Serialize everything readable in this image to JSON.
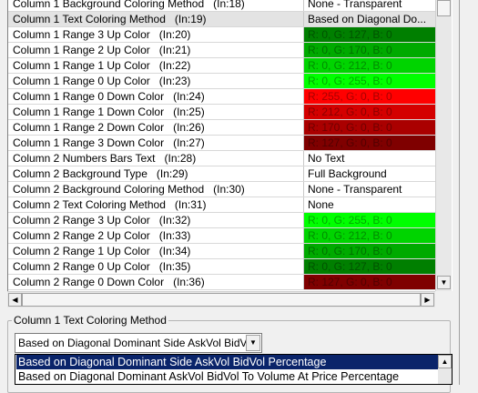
{
  "grid": {
    "rows": [
      {
        "name": "Column 1 Background Coloring Method",
        "input": "(In:18)",
        "value": "None - Transparent",
        "color": ""
      },
      {
        "name": "Column 1 Text Coloring Method",
        "input": "(In:19)",
        "value": "Based on Diagonal Do...",
        "color": "",
        "selected": true
      },
      {
        "name": "Column 1 Range 3 Up Color",
        "input": "(In:20)",
        "value": "R: 0, G: 127, B: 0",
        "color": "#007f00"
      },
      {
        "name": "Column 1 Range 2 Up Color",
        "input": "(In:21)",
        "value": "R: 0, G: 170, B: 0",
        "color": "#00aa00"
      },
      {
        "name": "Column 1 Range 1 Up Color",
        "input": "(In:22)",
        "value": "R: 0, G: 212, B: 0",
        "color": "#00d400"
      },
      {
        "name": "Column 1 Range 0 Up Color",
        "input": "(In:23)",
        "value": "R: 0, G: 255, B: 0",
        "color": "#00ff00"
      },
      {
        "name": "Column 1 Range 0 Down Color",
        "input": "(In:24)",
        "value": "R: 255, G: 0, B: 0",
        "color": "#ff0000"
      },
      {
        "name": "Column 1 Range 1 Down Color",
        "input": "(In:25)",
        "value": "R: 212, G: 0, B: 0",
        "color": "#d40000"
      },
      {
        "name": "Column 1 Range 2 Down Color",
        "input": "(In:26)",
        "value": "R: 170, G: 0, B: 0",
        "color": "#aa0000"
      },
      {
        "name": "Column 1 Range 3 Down Color",
        "input": "(In:27)",
        "value": "R: 127, G: 0, B: 0",
        "color": "#7f0000"
      },
      {
        "name": "Column 2 Numbers Bars Text",
        "input": "(In:28)",
        "value": "No Text",
        "color": ""
      },
      {
        "name": "Column 2 Background Type",
        "input": "(In:29)",
        "value": "Full Background",
        "color": ""
      },
      {
        "name": "Column 2 Background Coloring Method",
        "input": "(In:30)",
        "value": "None - Transparent",
        "color": ""
      },
      {
        "name": "Column 2 Text Coloring Method",
        "input": "(In:31)",
        "value": "None",
        "color": ""
      },
      {
        "name": "Column 2 Range 3 Up Color",
        "input": "(In:32)",
        "value": "R: 0, G: 255, B: 0",
        "color": "#00ff00"
      },
      {
        "name": "Column 2 Range 2 Up Color",
        "input": "(In:33)",
        "value": "R: 0, G: 212, B: 0",
        "color": "#00d400"
      },
      {
        "name": "Column 2 Range 1 Up Color",
        "input": "(In:34)",
        "value": "R: 0, G: 170, B: 0",
        "color": "#00aa00"
      },
      {
        "name": "Column 2 Range 0 Up Color",
        "input": "(In:35)",
        "value": "R: 0, G: 127, B: 0",
        "color": "#007f00"
      },
      {
        "name": "Column 2 Range 0 Down Color",
        "input": "(In:36)",
        "value": "R: 127, G: 0, B: 0",
        "color": "#7f0000"
      }
    ]
  },
  "group": {
    "label": "Column 1 Text Coloring Method",
    "combo_value": "Based on Diagonal Dominant Side AskVol BidVol Percentage",
    "options": [
      "Based on Diagonal Dominant Side AskVol BidVol Percentage",
      "Based on Diagonal Dominant AskVol BidVol To Volume At Price Percentage"
    ],
    "selected_option": 0
  },
  "icons": {
    "scroll_up": "arrow-up-icon",
    "scroll_down": "arrow-down-icon",
    "scroll_left": "arrow-left-icon",
    "scroll_right": "arrow-right-icon",
    "combo_dropdown": "chevron-down-icon"
  }
}
